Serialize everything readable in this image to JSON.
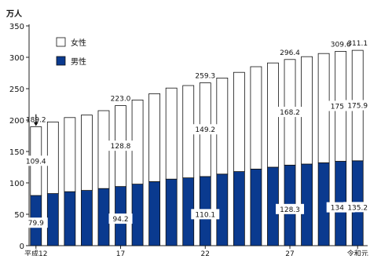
{
  "chart_data": {
    "type": "bar",
    "stacked": true,
    "y_unit_label": "万人",
    "ylim": [
      0,
      350
    ],
    "yticks": [
      0,
      50,
      100,
      150,
      200,
      250,
      300,
      350
    ],
    "grid": false,
    "legend_position": "top-left",
    "legend": [
      {
        "name": "女性",
        "color": "#ffffff"
      },
      {
        "name": "男性",
        "color": "#0a3a8f"
      }
    ],
    "x_tick_labels": [
      {
        "index": 0,
        "text": "平成12"
      },
      {
        "index": 5,
        "text": "17"
      },
      {
        "index": 10,
        "text": "22"
      },
      {
        "index": 15,
        "text": "27"
      },
      {
        "index": 19,
        "text": "令和元"
      }
    ],
    "categories": [
      "12",
      "13",
      "14",
      "15",
      "16",
      "17",
      "18",
      "19",
      "20",
      "21",
      "22",
      "23",
      "24",
      "25",
      "26",
      "27",
      "28",
      "29",
      "30",
      "元"
    ],
    "series": [
      {
        "name": "男性",
        "color": "#0a3a8f",
        "values": [
          79.9,
          83,
          86,
          88,
          91,
          94.2,
          98,
          102,
          106,
          108,
          110.1,
          114,
          118,
          122,
          125,
          128.3,
          130,
          132,
          134.4,
          135.2
        ]
      },
      {
        "name": "女性",
        "color": "#ffffff",
        "values": [
          109.4,
          114,
          118,
          120,
          124,
          128.8,
          134,
          140,
          145,
          147,
          149.2,
          153,
          158,
          163,
          166,
          168.2,
          171,
          174,
          175.1,
          175.9
        ]
      }
    ],
    "totals": [
      189.2,
      197,
      204,
      208,
      215,
      223.0,
      232,
      242,
      251,
      255,
      259.3,
      267,
      276,
      285,
      291,
      296.4,
      301,
      306,
      309.6,
      311.1
    ],
    "data_labels": {
      "total": [
        {
          "index": 0,
          "text": "189.2"
        },
        {
          "index": 5,
          "text": "223.0"
        },
        {
          "index": 10,
          "text": "259.3"
        },
        {
          "index": 15,
          "text": "296.4"
        },
        {
          "index": 18,
          "text": "309.6"
        },
        {
          "index": 19,
          "text": "311.1"
        }
      ],
      "female": [
        {
          "index": 0,
          "text": "109.4"
        },
        {
          "index": 5,
          "text": "128.8"
        },
        {
          "index": 10,
          "text": "149.2"
        },
        {
          "index": 15,
          "text": "168.2"
        },
        {
          "index": 18,
          "text": "175.1"
        },
        {
          "index": 19,
          "text": "175.9"
        }
      ],
      "male": [
        {
          "index": 0,
          "text": "79.9"
        },
        {
          "index": 5,
          "text": "94.2"
        },
        {
          "index": 10,
          "text": "110.1"
        },
        {
          "index": 15,
          "text": "128.3"
        },
        {
          "index": 18,
          "text": "134.4"
        },
        {
          "index": 19,
          "text": "135.2"
        }
      ]
    }
  }
}
